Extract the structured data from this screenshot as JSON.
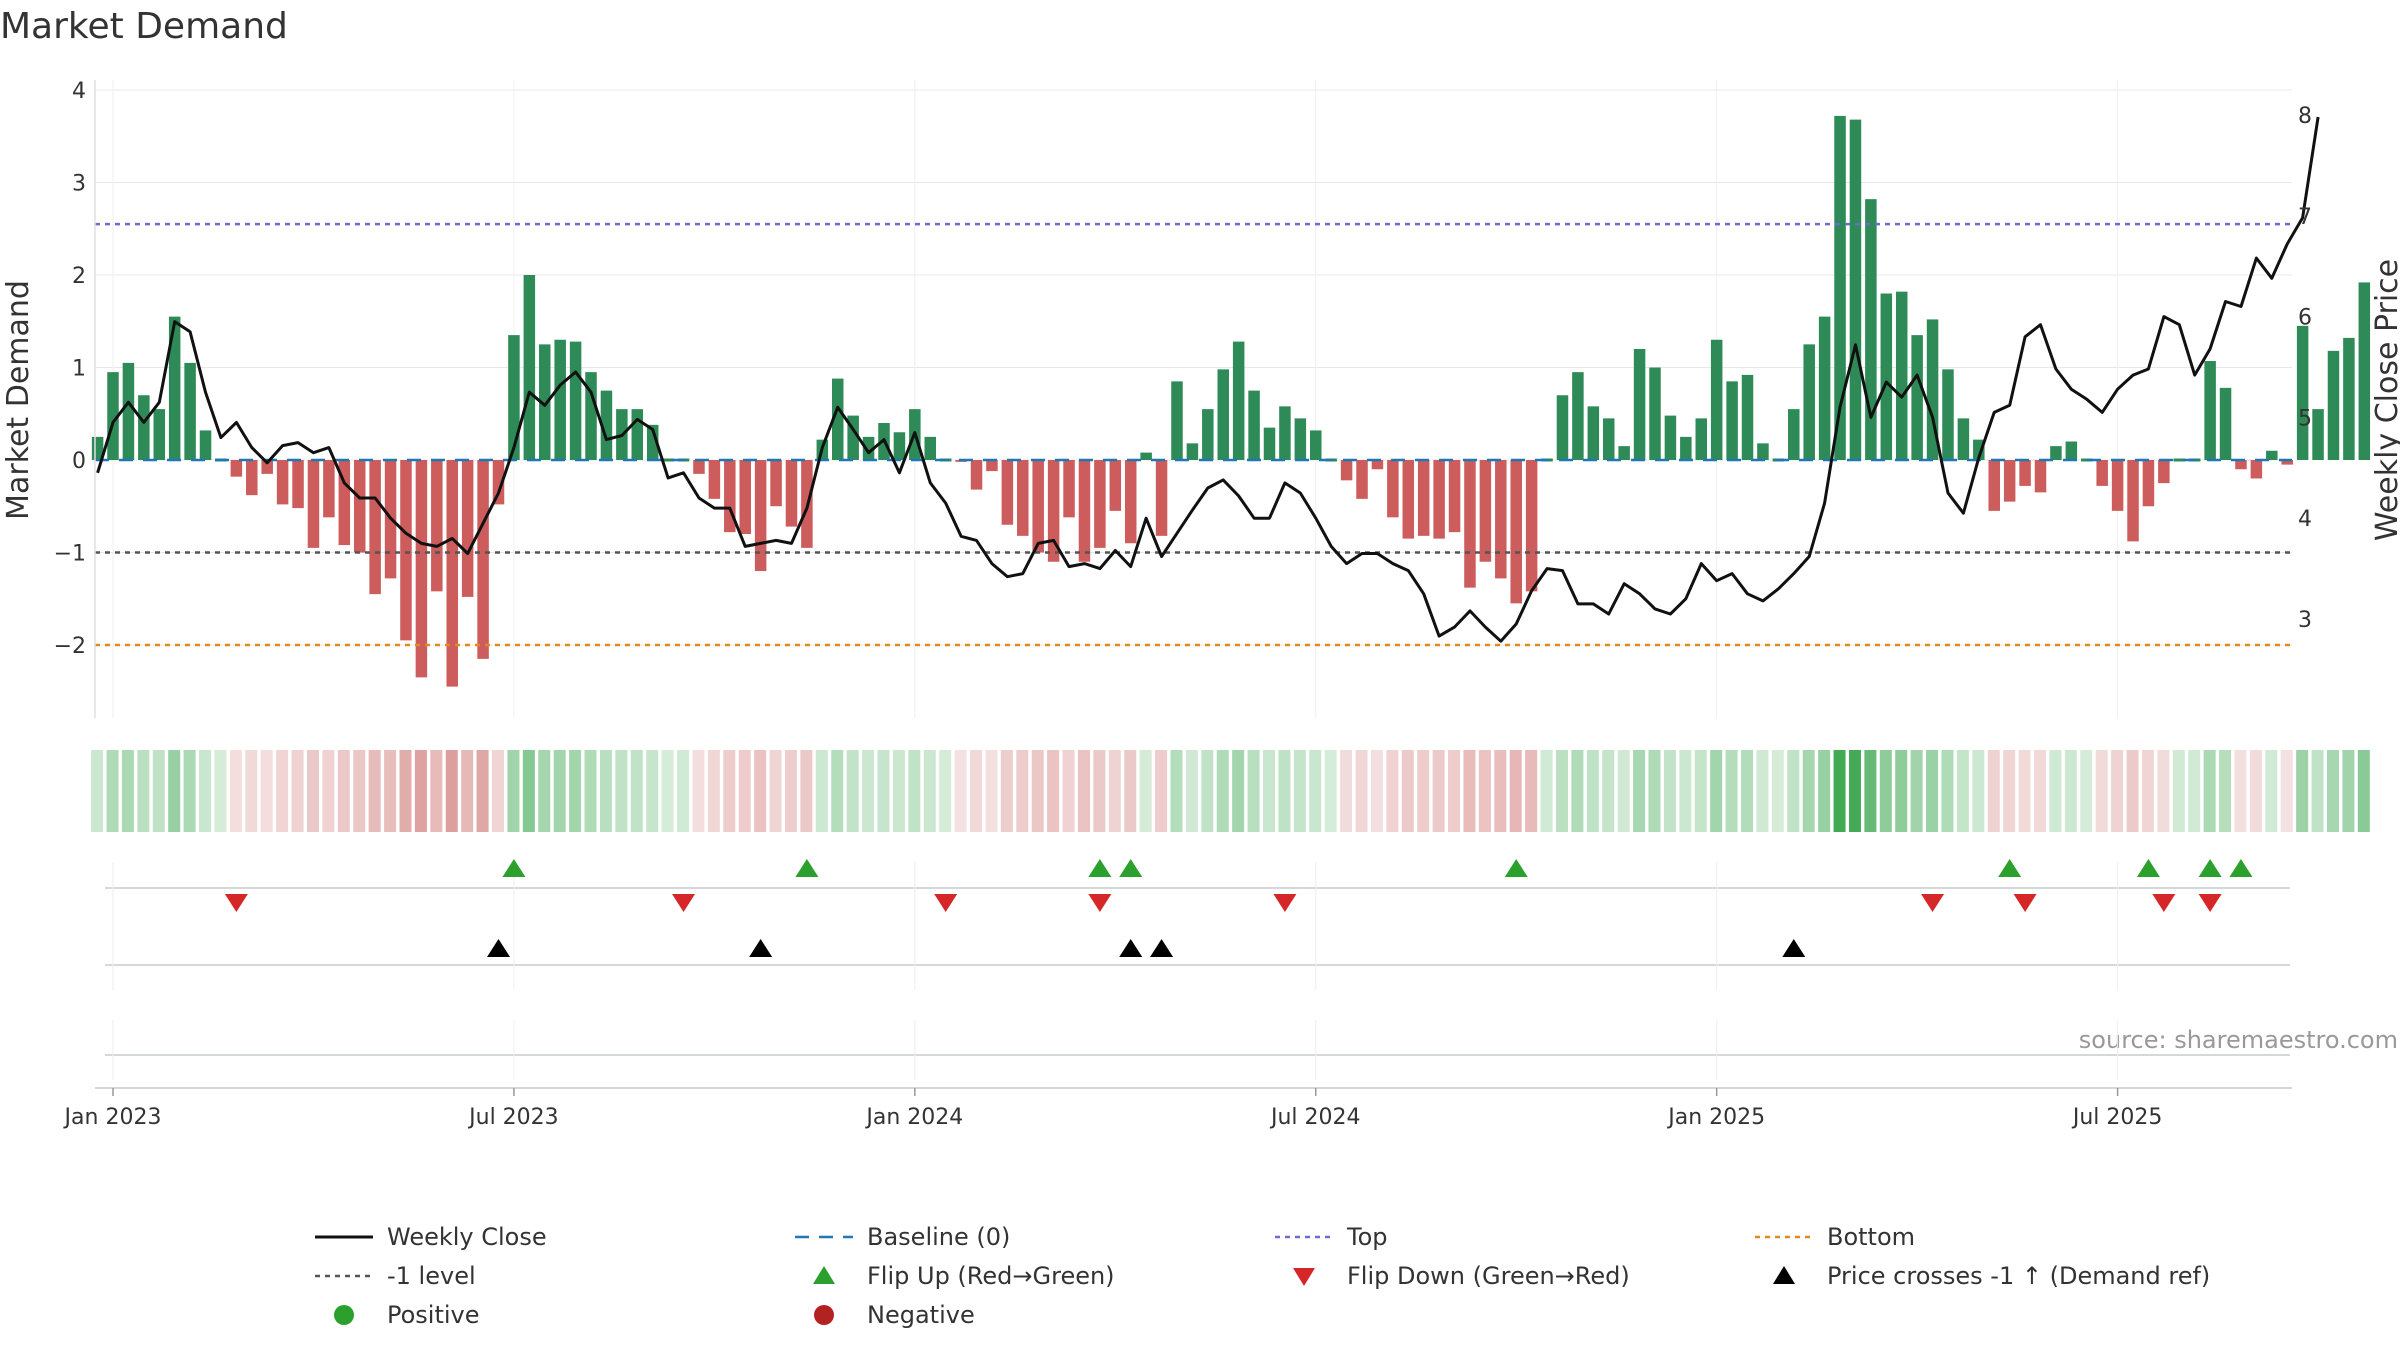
{
  "chart_data": {
    "type": "bar",
    "title": "Market Demand",
    "ylabel": "Market Demand",
    "y2label": "Weekly Close Price",
    "ylim": [
      -2.75,
      4.1
    ],
    "y2lim": [
      2.08,
      8.17
    ],
    "yticks": [
      "4",
      "3",
      "2",
      "1",
      "0",
      "−1",
      "−2"
    ],
    "ytick_values": [
      4,
      3,
      2,
      1,
      0,
      -1,
      -2
    ],
    "y2ticks": [
      "8",
      "7",
      "6",
      "5",
      "4",
      "3"
    ],
    "y2tick_values": [
      8,
      7,
      6,
      5,
      4,
      3
    ],
    "xticks": [
      "Jan 2023",
      "Jul 2023",
      "Jan 2024",
      "Jul 2024",
      "Jan 2025",
      "Jul 2025"
    ],
    "xtick_weeks": [
      0,
      26,
      52,
      78,
      104,
      130
    ],
    "first_week_offset": -1,
    "levels": {
      "top": 2.55,
      "minus_one": -1.0,
      "bottom": -2.0,
      "baseline": 0
    },
    "demand": [
      0.25,
      0.95,
      1.05,
      0.7,
      0.55,
      1.55,
      1.05,
      0.32,
      0.0,
      -0.18,
      -0.38,
      -0.15,
      -0.48,
      -0.52,
      -0.95,
      -0.62,
      -0.92,
      -1.0,
      -1.45,
      -1.28,
      -1.95,
      -2.35,
      -1.42,
      -2.45,
      -1.48,
      -2.15,
      -0.48,
      1.35,
      2.0,
      1.25,
      1.3,
      1.28,
      0.95,
      0.75,
      0.55,
      0.55,
      0.38,
      0.0,
      0.0,
      -0.15,
      -0.42,
      -0.78,
      -0.8,
      -1.2,
      -0.5,
      -0.72,
      -0.95,
      0.22,
      0.88,
      0.48,
      0.25,
      0.4,
      0.3,
      0.55,
      0.25,
      0.0,
      -0.02,
      -0.32,
      -0.12,
      -0.7,
      -0.82,
      -1.0,
      -1.1,
      -0.62,
      -1.1,
      -0.95,
      -0.55,
      -0.9,
      0.08,
      -0.82,
      0.85,
      0.18,
      0.55,
      0.98,
      1.28,
      0.75,
      0.35,
      0.58,
      0.45,
      0.32,
      0.0,
      -0.22,
      -0.42,
      -0.1,
      -0.62,
      -0.85,
      -0.82,
      -0.85,
      -0.78,
      -1.38,
      -1.1,
      -1.28,
      -1.55,
      -1.42,
      0.0,
      0.7,
      0.95,
      0.58,
      0.45,
      0.15,
      1.2,
      1.0,
      0.48,
      0.25,
      0.45,
      1.3,
      0.85,
      0.92,
      0.18,
      0.0,
      0.55,
      1.25,
      1.55,
      3.72,
      3.68,
      2.82,
      1.8,
      1.82,
      1.35,
      1.52,
      0.98,
      0.45,
      0.22,
      -0.55,
      -0.45,
      -0.28,
      -0.35,
      0.15,
      0.2,
      0.0,
      -0.28,
      -0.55,
      -0.88,
      -0.5,
      -0.25,
      0.0,
      0.0,
      1.07,
      0.78,
      -0.1,
      -0.2,
      0.1,
      -0.05,
      1.45,
      0.55,
      1.18,
      1.32,
      1.92
    ],
    "close": [
      4.45,
      4.95,
      5.15,
      4.95,
      5.15,
      5.95,
      5.85,
      5.25,
      4.8,
      4.95,
      4.7,
      4.55,
      4.72,
      4.75,
      4.65,
      4.7,
      4.35,
      4.2,
      4.2,
      4.0,
      3.85,
      3.75,
      3.72,
      3.8,
      3.65,
      3.95,
      4.25,
      4.7,
      5.25,
      5.12,
      5.32,
      5.45,
      5.25,
      4.78,
      4.82,
      4.98,
      4.88,
      4.4,
      4.45,
      4.2,
      4.1,
      4.1,
      3.72,
      3.75,
      3.78,
      3.75,
      4.1,
      4.7,
      5.1,
      4.88,
      4.65,
      4.78,
      4.45,
      4.85,
      4.35,
      4.15,
      3.82,
      3.78,
      3.55,
      3.42,
      3.45,
      3.75,
      3.78,
      3.52,
      3.55,
      3.5,
      3.68,
      3.52,
      4.0,
      3.62,
      3.85,
      4.08,
      4.3,
      4.38,
      4.22,
      4.0,
      4.0,
      4.35,
      4.25,
      4.0,
      3.72,
      3.55,
      3.65,
      3.65,
      3.55,
      3.48,
      3.25,
      2.83,
      2.92,
      3.08,
      2.92,
      2.78,
      2.95,
      3.28,
      3.5,
      3.48,
      3.15,
      3.15,
      3.05,
      3.35,
      3.25,
      3.1,
      3.05,
      3.2,
      3.55,
      3.38,
      3.45,
      3.25,
      3.18,
      3.3,
      3.45,
      3.62,
      4.15,
      5.1,
      5.72,
      5.0,
      5.35,
      5.2,
      5.42,
      5.0,
      4.25,
      4.05,
      4.6,
      5.05,
      5.12,
      5.8,
      5.92,
      5.48,
      5.28,
      5.18,
      5.05,
      5.28,
      5.42,
      5.48,
      6.0,
      5.92,
      5.42,
      5.68,
      6.15,
      6.1,
      6.58,
      6.38,
      6.72,
      6.98,
      7.98
    ],
    "heat_strip": true,
    "flip_up_weeks": [
      26,
      45,
      64,
      66,
      91,
      123,
      132,
      136,
      138
    ],
    "flip_down_weeks": [
      8,
      37,
      54,
      64,
      76,
      118,
      124,
      133,
      136
    ],
    "price_cross_weeks": [
      25,
      42,
      66,
      68,
      109
    ],
    "colors": {
      "positive": "#2e8b57",
      "negative": "#cd5c5c",
      "close": "#111111",
      "baseline": "#1f77b4",
      "top": "#6b6bd0",
      "minus_one": "#555555",
      "bottom": "#e08a20",
      "flip_up": "#2ca02c",
      "flip_down": "#d62728",
      "cross": "#000000",
      "positive_marker": "#2ca02c",
      "negative_marker": "#b22222"
    },
    "legend": [
      {
        "label": "Weekly Close",
        "kind": "line",
        "color": "#111111"
      },
      {
        "label": "Baseline (0)",
        "kind": "dash",
        "color": "#1f77b4"
      },
      {
        "label": "Top",
        "kind": "dot",
        "color": "#6b6bd0"
      },
      {
        "label": "Bottom",
        "kind": "dot",
        "color": "#e08a20"
      },
      {
        "label": "-1 level",
        "kind": "dot",
        "color": "#555555"
      },
      {
        "label": "Flip Up (Red→Green)",
        "kind": "tri-up",
        "color": "#2ca02c"
      },
      {
        "label": "Flip Down (Green→Red)",
        "kind": "tri-down",
        "color": "#d62728"
      },
      {
        "label": "Price crosses -1 ↑ (Demand ref)",
        "kind": "tri-up",
        "color": "#000000"
      },
      {
        "label": "Positive",
        "kind": "circle",
        "color": "#2ca02c"
      },
      {
        "label": "Negative",
        "kind": "circle",
        "color": "#b22222"
      }
    ],
    "source": "source: sharemaestro.com"
  }
}
